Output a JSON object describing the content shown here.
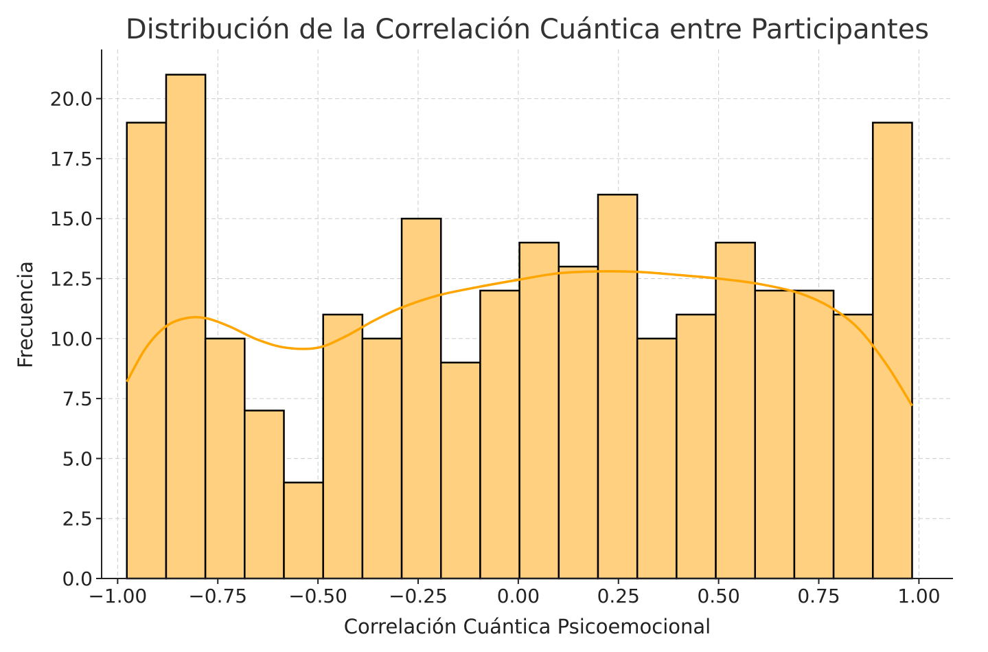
{
  "chart_data": {
    "type": "bar",
    "title": "Distribución de la Correlación Cuántica entre Participantes",
    "xlabel": "Correlación Cuántica Psicoemocional",
    "ylabel": "Frecuencia",
    "xlim": [
      -1.04,
      1.085
    ],
    "ylim": [
      0,
      22.05
    ],
    "xticks": [
      -1.0,
      -0.75,
      -0.5,
      -0.25,
      0.0,
      0.25,
      0.5,
      0.75,
      1.0
    ],
    "xtick_labels": [
      "−1.00",
      "−0.75",
      "−0.50",
      "−0.25",
      "0.00",
      "0.25",
      "0.50",
      "0.75",
      "1.00"
    ],
    "yticks": [
      0.0,
      2.5,
      5.0,
      7.5,
      10.0,
      12.5,
      15.0,
      17.5,
      20.0
    ],
    "ytick_labels": [
      "0.0",
      "2.5",
      "5.0",
      "7.5",
      "10.0",
      "12.5",
      "15.0",
      "17.5",
      "20.0"
    ],
    "grid": true,
    "bins": [
      {
        "x0": -0.977,
        "x1": -0.879,
        "count": 19
      },
      {
        "x0": -0.879,
        "x1": -0.781,
        "count": 21
      },
      {
        "x0": -0.781,
        "x1": -0.683,
        "count": 10
      },
      {
        "x0": -0.683,
        "x1": -0.585,
        "count": 7
      },
      {
        "x0": -0.585,
        "x1": -0.487,
        "count": 4
      },
      {
        "x0": -0.487,
        "x1": -0.389,
        "count": 11
      },
      {
        "x0": -0.389,
        "x1": -0.291,
        "count": 10
      },
      {
        "x0": -0.291,
        "x1": -0.193,
        "count": 15
      },
      {
        "x0": -0.193,
        "x1": -0.095,
        "count": 9
      },
      {
        "x0": -0.095,
        "x1": 0.003,
        "count": 12
      },
      {
        "x0": 0.003,
        "x1": 0.101,
        "count": 14
      },
      {
        "x0": 0.101,
        "x1": 0.199,
        "count": 13
      },
      {
        "x0": 0.199,
        "x1": 0.297,
        "count": 16
      },
      {
        "x0": 0.297,
        "x1": 0.395,
        "count": 10
      },
      {
        "x0": 0.395,
        "x1": 0.493,
        "count": 11
      },
      {
        "x0": 0.493,
        "x1": 0.591,
        "count": 14
      },
      {
        "x0": 0.591,
        "x1": 0.689,
        "count": 12
      },
      {
        "x0": 0.689,
        "x1": 0.787,
        "count": 12
      },
      {
        "x0": 0.787,
        "x1": 0.885,
        "count": 11
      },
      {
        "x0": 0.885,
        "x1": 0.983,
        "count": 19
      }
    ],
    "kde": {
      "x": [
        -0.977,
        -0.93,
        -0.88,
        -0.83,
        -0.78,
        -0.72,
        -0.65,
        -0.58,
        -0.5,
        -0.43,
        -0.36,
        -0.29,
        -0.2,
        -0.1,
        0.0,
        0.1,
        0.2,
        0.3,
        0.4,
        0.5,
        0.6,
        0.7,
        0.78,
        0.85,
        0.92,
        0.983
      ],
      "y": [
        8.2,
        9.6,
        10.5,
        10.85,
        10.85,
        10.5,
        9.95,
        9.62,
        9.62,
        10.1,
        10.75,
        11.3,
        11.8,
        12.15,
        12.45,
        12.72,
        12.8,
        12.78,
        12.65,
        12.5,
        12.28,
        11.9,
        11.3,
        10.4,
        8.9,
        7.2
      ]
    },
    "colors": {
      "bar_fill": "#ffd080",
      "bar_edge": "#000000",
      "kde_line": "#ffa500"
    }
  }
}
